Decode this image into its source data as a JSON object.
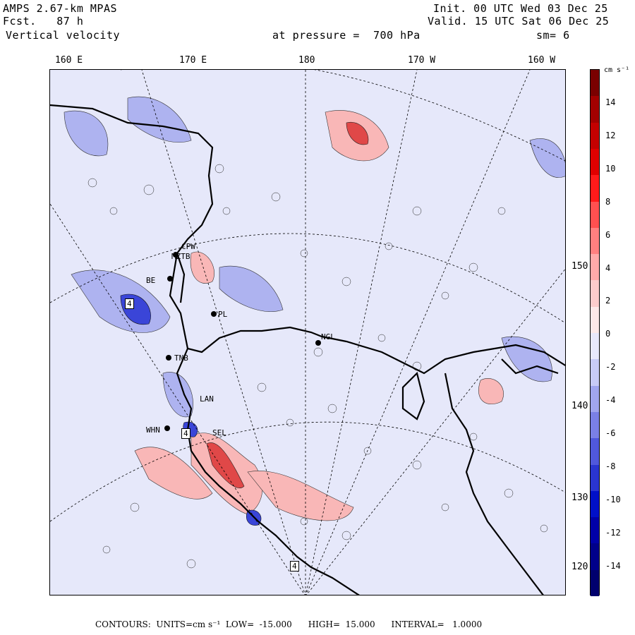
{
  "header": {
    "model": "AMPS 2.67-km MPAS",
    "forecast": "Fcst.   87 h",
    "field": "Vertical velocity",
    "init": "Init. 00 UTC Wed 03 Dec 25",
    "valid": "Valid. 15 UTC Sat 06 Dec 25",
    "pressure": "at pressure =  700 hPa",
    "smoothing": "sm= 6"
  },
  "lon_labels": [
    "160 E",
    "170 E",
    "180",
    "170 W",
    "160 W"
  ],
  "lat_labels": [
    "150 W",
    "140 W",
    "130 W",
    "120 W"
  ],
  "colorbar": {
    "unit": "cm s⁻¹",
    "ticks": [
      "14",
      "12",
      "10",
      "8",
      "6",
      "4",
      "2",
      "0",
      "-2",
      "-4",
      "-6",
      "-8",
      "-10",
      "-12",
      "-14"
    ],
    "colors": [
      "#7a0000",
      "#a30000",
      "#c40000",
      "#e00000",
      "#ff1a1a",
      "#ff5050",
      "#ff8080",
      "#ffaaaa",
      "#fccccc",
      "#fde9e9",
      "#e8e8fb",
      "#c8cbf6",
      "#a0a5ee",
      "#7a80e6",
      "#5058dc",
      "#2a35d0",
      "#0010c8",
      "#0000a8",
      "#00008a",
      "#00006e"
    ]
  },
  "stations": [
    "CPW",
    "MZTB",
    "BE",
    "PL",
    "NGL",
    "LAN",
    "SEL",
    "WHN",
    "TNB",
    "4",
    "4",
    "4"
  ],
  "footer": {
    "contours_label": "CONTOURS:",
    "units": "UNITS=cm s⁻¹",
    "low": "LOW=  -15.000",
    "high": "HIGH=  15.000",
    "interval": "INTERVAL=   1.0000"
  },
  "colors": {
    "positive": "#ff8080",
    "negative": "#7a80e6",
    "background": "#e6e8fa",
    "land": "#000000"
  }
}
